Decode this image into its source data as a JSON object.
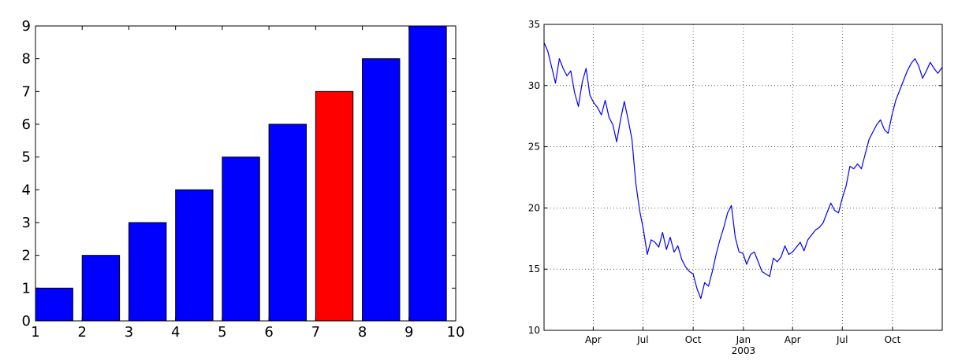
{
  "chart_data": [
    {
      "type": "bar",
      "categories": [
        "1",
        "2",
        "3",
        "4",
        "5",
        "6",
        "7",
        "8",
        "9"
      ],
      "x": [
        1,
        2,
        3,
        4,
        5,
        6,
        7,
        8,
        9
      ],
      "values": [
        1,
        2,
        3,
        4,
        5,
        6,
        7,
        8,
        9
      ],
      "bar_colors": [
        "#0000ff",
        "#0000ff",
        "#0000ff",
        "#0000ff",
        "#0000ff",
        "#0000ff",
        "#ff0000",
        "#0000ff",
        "#0000ff"
      ],
      "xlim": [
        1,
        10
      ],
      "ylim": [
        0,
        9
      ],
      "xticks": [
        1,
        2,
        3,
        4,
        5,
        6,
        7,
        8,
        9,
        10
      ],
      "yticks": [
        0,
        1,
        2,
        3,
        4,
        5,
        6,
        7,
        8,
        9
      ],
      "grid": false,
      "title": "",
      "xlabel": "",
      "ylabel": ""
    },
    {
      "type": "line",
      "color": "#0000ff",
      "grid": true,
      "ylim": [
        10,
        35
      ],
      "yticks": [
        10,
        15,
        20,
        25,
        30,
        35
      ],
      "xlim": [
        "2002-01-01",
        "2003-12-31"
      ],
      "xticks": [
        {
          "date": "2002-04-01",
          "label": "Apr",
          "sublabel": ""
        },
        {
          "date": "2002-07-01",
          "label": "Jul",
          "sublabel": ""
        },
        {
          "date": "2002-10-01",
          "label": "Oct",
          "sublabel": ""
        },
        {
          "date": "2003-01-01",
          "label": "Jan",
          "sublabel": "2003"
        },
        {
          "date": "2003-04-01",
          "label": "Apr",
          "sublabel": ""
        },
        {
          "date": "2003-07-01",
          "label": "Jul",
          "sublabel": ""
        },
        {
          "date": "2003-10-01",
          "label": "Oct",
          "sublabel": ""
        }
      ],
      "x": [
        "2002-01-01",
        "2002-01-08",
        "2002-01-15",
        "2002-01-22",
        "2002-01-29",
        "2002-02-05",
        "2002-02-12",
        "2002-02-19",
        "2002-02-26",
        "2002-03-05",
        "2002-03-12",
        "2002-03-19",
        "2002-03-26",
        "2002-04-02",
        "2002-04-09",
        "2002-04-16",
        "2002-04-23",
        "2002-04-30",
        "2002-05-07",
        "2002-05-14",
        "2002-05-21",
        "2002-05-28",
        "2002-06-04",
        "2002-06-11",
        "2002-06-18",
        "2002-06-25",
        "2002-07-02",
        "2002-07-09",
        "2002-07-16",
        "2002-07-23",
        "2002-07-30",
        "2002-08-06",
        "2002-08-13",
        "2002-08-20",
        "2002-08-27",
        "2002-09-03",
        "2002-09-10",
        "2002-09-17",
        "2002-09-24",
        "2002-10-01",
        "2002-10-08",
        "2002-10-15",
        "2002-10-22",
        "2002-10-29",
        "2002-11-05",
        "2002-11-12",
        "2002-11-19",
        "2002-11-26",
        "2002-12-03",
        "2002-12-10",
        "2002-12-17",
        "2002-12-24",
        "2002-12-31",
        "2003-01-07",
        "2003-01-14",
        "2003-01-21",
        "2003-01-28",
        "2003-02-04",
        "2003-02-11",
        "2003-02-18",
        "2003-02-25",
        "2003-03-04",
        "2003-03-11",
        "2003-03-18",
        "2003-03-25",
        "2003-04-01",
        "2003-04-08",
        "2003-04-15",
        "2003-04-22",
        "2003-04-29",
        "2003-05-06",
        "2003-05-13",
        "2003-05-20",
        "2003-05-27",
        "2003-06-03",
        "2003-06-10",
        "2003-06-17",
        "2003-06-24",
        "2003-07-01",
        "2003-07-08",
        "2003-07-15",
        "2003-07-22",
        "2003-07-29",
        "2003-08-05",
        "2003-08-12",
        "2003-08-19",
        "2003-08-26",
        "2003-09-02",
        "2003-09-09",
        "2003-09-16",
        "2003-09-23",
        "2003-09-30",
        "2003-10-07",
        "2003-10-14",
        "2003-10-21",
        "2003-10-28",
        "2003-11-04",
        "2003-11-11",
        "2003-11-18",
        "2003-11-25",
        "2003-12-02",
        "2003-12-09",
        "2003-12-16",
        "2003-12-23",
        "2003-12-31"
      ],
      "values": [
        33.5,
        32.8,
        31.5,
        30.2,
        32.2,
        31.4,
        30.8,
        31.2,
        29.4,
        28.3,
        30.3,
        31.4,
        29.2,
        28.6,
        28.2,
        27.6,
        28.8,
        27.4,
        26.8,
        25.4,
        27.2,
        28.7,
        27.2,
        25.6,
        22.0,
        19.8,
        18.2,
        16.2,
        17.4,
        17.2,
        16.8,
        18.0,
        16.6,
        17.6,
        16.4,
        16.9,
        15.8,
        15.2,
        14.8,
        14.6,
        13.4,
        12.6,
        13.9,
        13.6,
        14.8,
        16.2,
        17.4,
        18.4,
        19.6,
        20.2,
        17.6,
        16.4,
        16.3,
        15.4,
        16.2,
        16.4,
        15.6,
        14.8,
        14.6,
        14.4,
        15.9,
        15.6,
        16.0,
        16.9,
        16.2,
        16.4,
        16.8,
        17.2,
        16.5,
        17.4,
        17.8,
        18.2,
        18.4,
        18.8,
        19.6,
        20.4,
        19.8,
        19.6,
        20.8,
        21.8,
        23.4,
        23.2,
        23.6,
        23.2,
        24.4,
        25.6,
        26.2,
        26.8,
        27.2,
        26.4,
        26.1,
        27.6,
        28.8,
        29.6,
        30.4,
        31.2,
        31.8,
        32.2,
        31.6,
        30.6,
        31.2,
        31.9,
        31.4,
        31.0,
        31.5
      ],
      "title": "",
      "xlabel": "",
      "ylabel": ""
    }
  ]
}
